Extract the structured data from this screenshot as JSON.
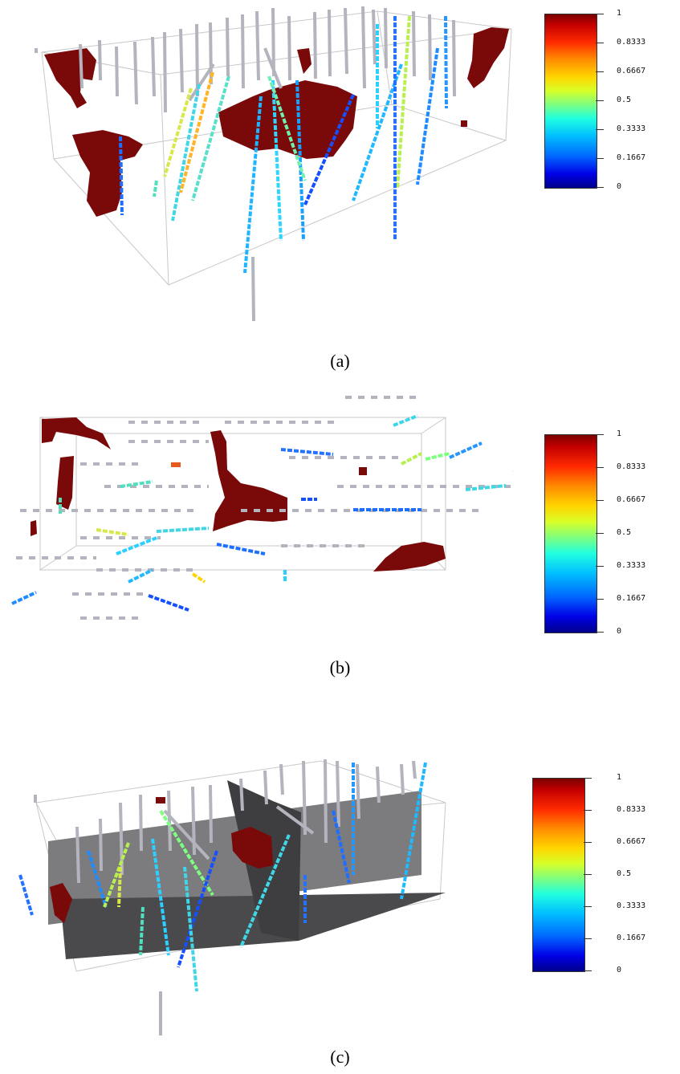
{
  "panels": [
    {
      "caption": "(a)",
      "colorbar": {
        "ticks": [
          "1",
          "0.8333",
          "0.6667",
          "0.5",
          "0.3333",
          "0.1667",
          "0"
        ]
      },
      "ore_color": "#7a0a0a",
      "unsampled_color": "#b4b4be"
    },
    {
      "caption": "(b)",
      "colorbar": {
        "ticks": [
          "1",
          "0.8333",
          "0.6667",
          "0.5",
          "0.3333",
          "0.1667",
          "0"
        ]
      },
      "ore_color": "#7a0a0a",
      "unsampled_color": "#b4b4be"
    },
    {
      "caption": "(c)",
      "colorbar": {
        "ticks": [
          "1",
          "0.8333",
          "0.6667",
          "0.5",
          "0.3333",
          "0.1667",
          "0"
        ]
      },
      "ore_color": "#7a0a0a",
      "unsampled_color": "#b4b4be",
      "section_color": "#7c7c7f",
      "floor_color": "#4a4a4c"
    }
  ]
}
